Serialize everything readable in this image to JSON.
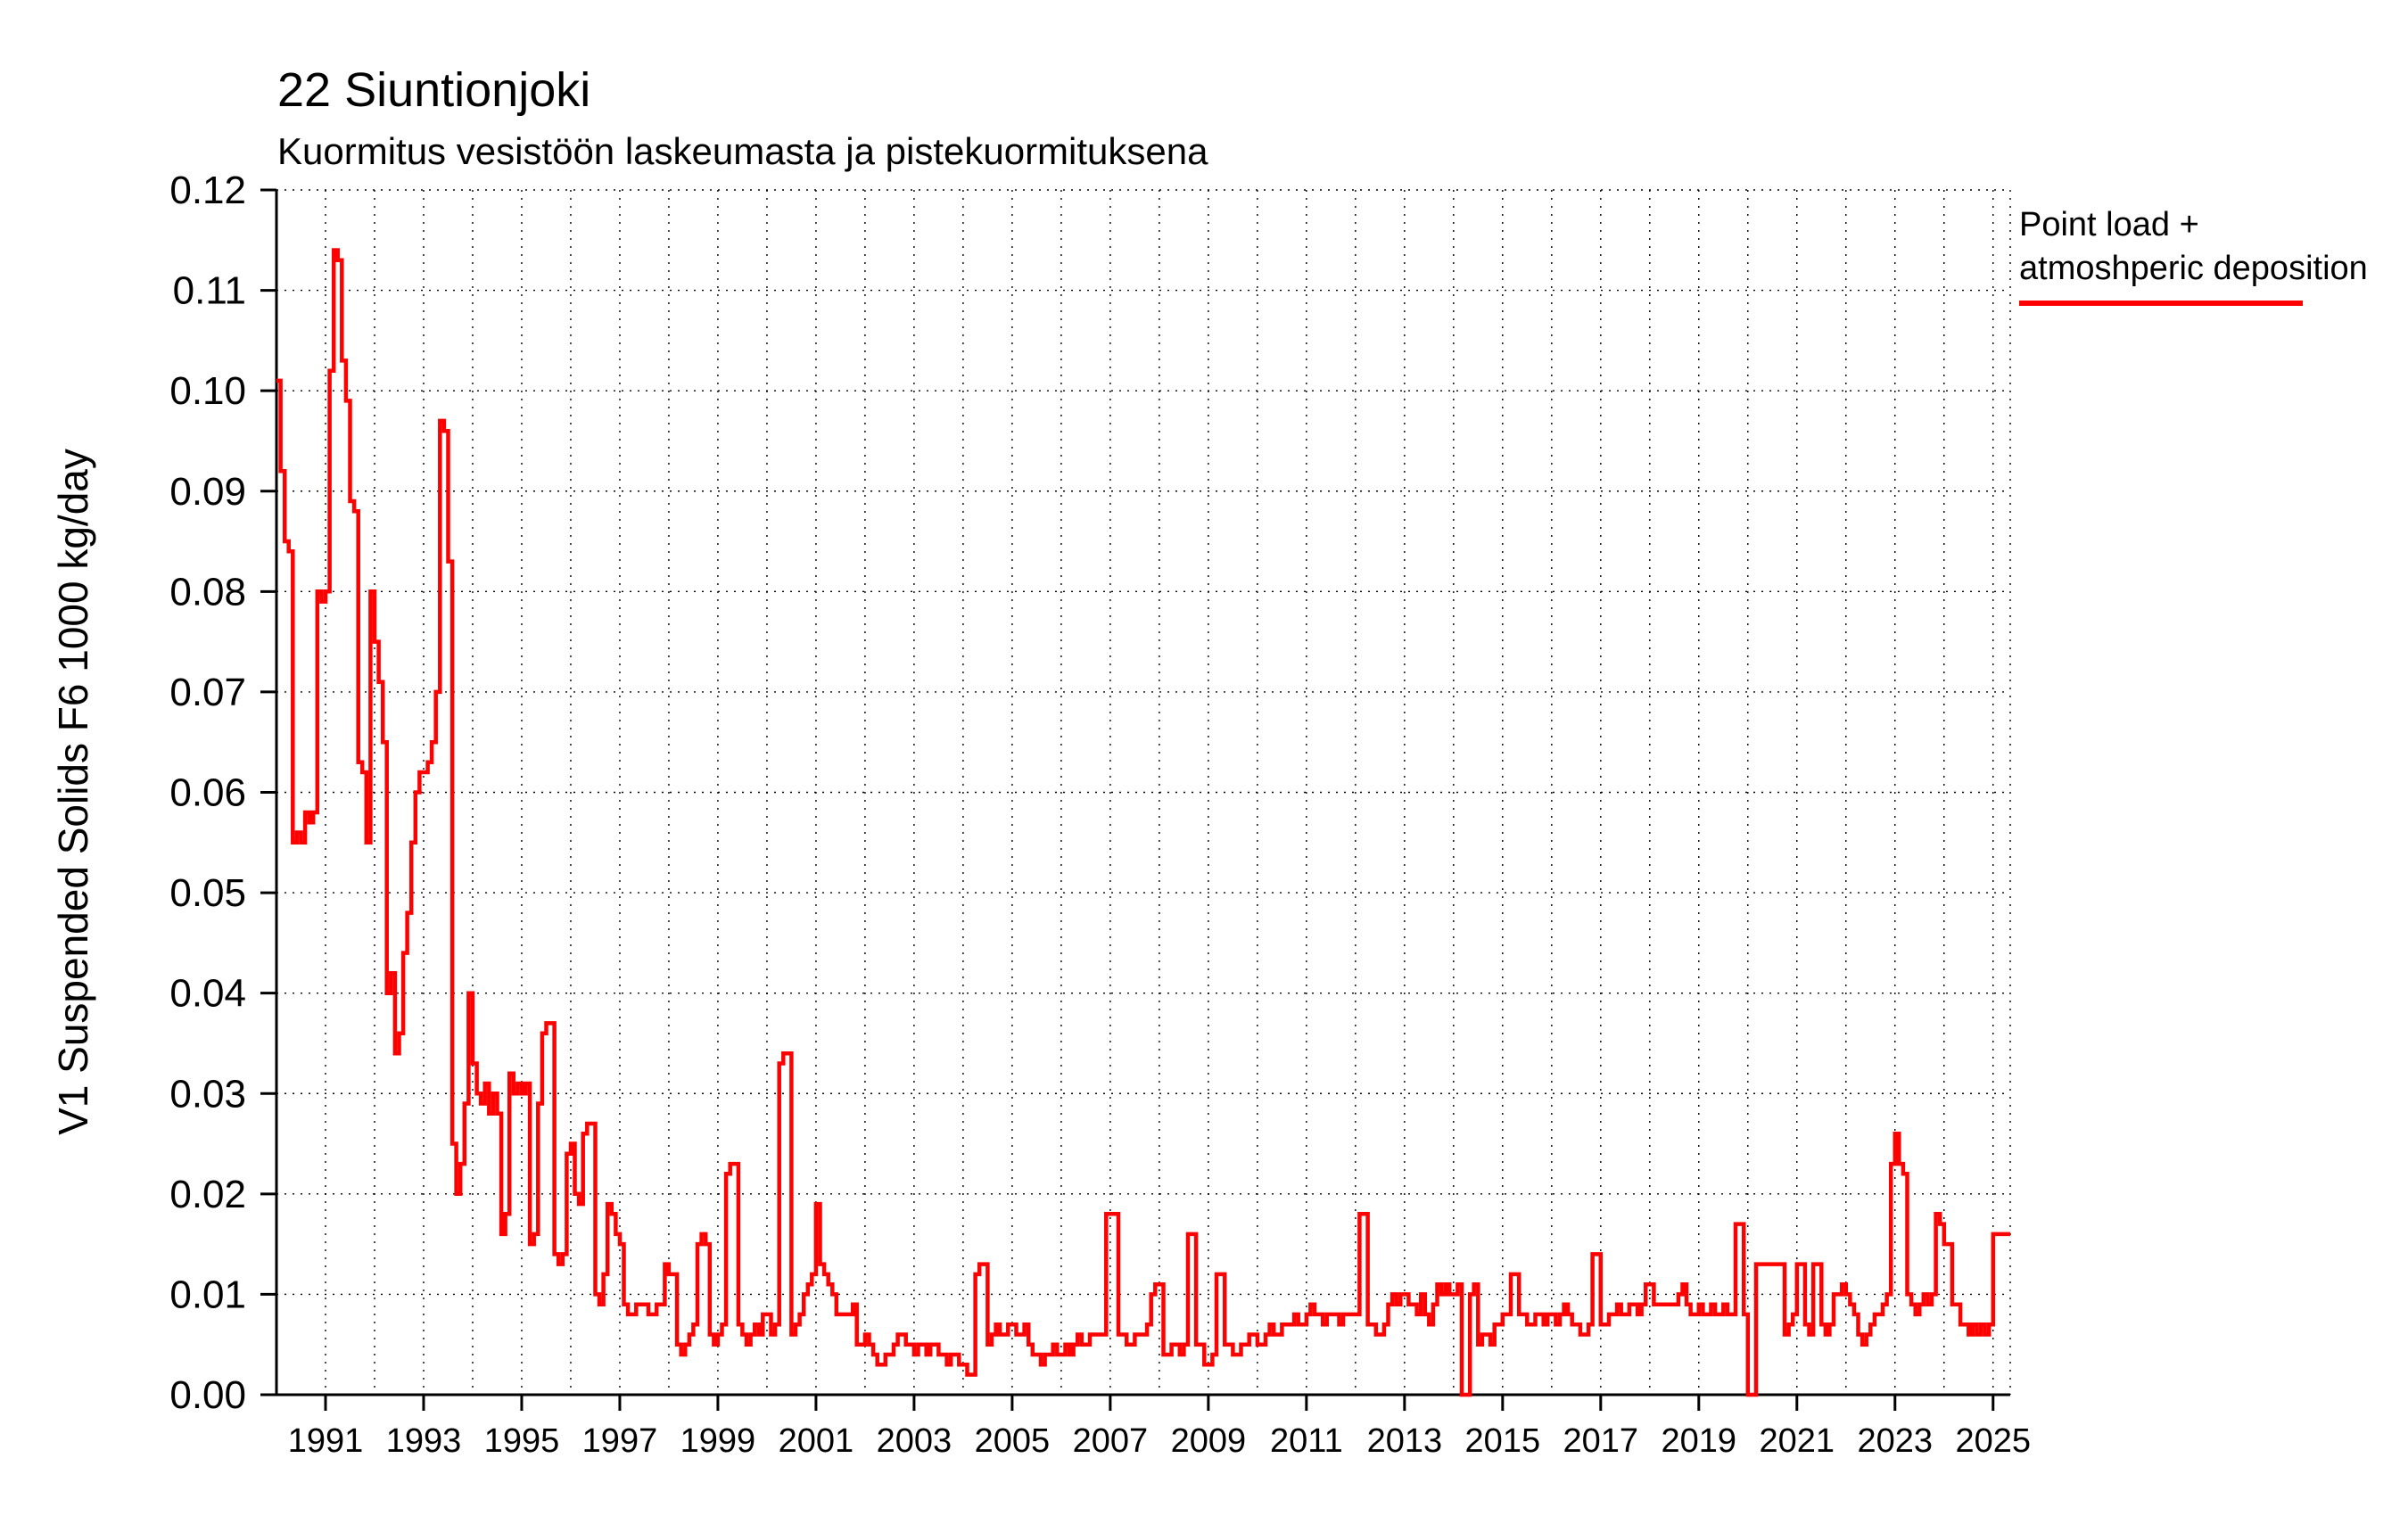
{
  "title": "22 Siuntionjoki",
  "subtitle": "Kuormitus vesistöön laskeumasta ja pistekuormituksena",
  "y_axis_label": "V1 Suspended Solids F6 1000 kg/day",
  "legend": {
    "line1": "Point load +",
    "line2": "atmoshperic deposition",
    "color": "#ff0000"
  },
  "chart_data": {
    "type": "line",
    "style": "step",
    "title": "22 Siuntionjoki",
    "subtitle": "Kuormitus vesistöön laskeumasta ja pistekuormituksena",
    "xlabel": "",
    "ylabel": "V1 Suspended Solids F6 1000 kg/day",
    "ylim": [
      0.0,
      0.12
    ],
    "ytick_step": 0.01,
    "xlim": [
      1990.0,
      2025.35
    ],
    "xticks": [
      1991,
      1993,
      1995,
      1997,
      1999,
      2001,
      2003,
      2005,
      2007,
      2009,
      2011,
      2013,
      2015,
      2017,
      2019,
      2021,
      2023,
      2025
    ],
    "grid": "dotted",
    "legend_position": "top-right-outside",
    "series": [
      {
        "name": "Point load + atmoshperic deposition",
        "color": "#ff0000",
        "start_year": 1990,
        "interval_months": 1,
        "values": [
          0.101,
          0.092,
          0.085,
          0.084,
          0.055,
          0.056,
          0.055,
          0.058,
          0.057,
          0.058,
          0.08,
          0.079,
          0.08,
          0.102,
          0.114,
          0.113,
          0.103,
          0.099,
          0.089,
          0.088,
          0.063,
          0.062,
          0.055,
          0.08,
          0.075,
          0.071,
          0.065,
          0.04,
          0.042,
          0.034,
          0.036,
          0.044,
          0.048,
          0.055,
          0.06,
          0.062,
          0.062,
          0.063,
          0.065,
          0.07,
          0.097,
          0.096,
          0.083,
          0.025,
          0.02,
          0.023,
          0.029,
          0.04,
          0.033,
          0.03,
          0.029,
          0.031,
          0.028,
          0.03,
          0.028,
          0.016,
          0.018,
          0.032,
          0.03,
          0.031,
          0.03,
          0.031,
          0.015,
          0.016,
          0.029,
          0.036,
          0.037,
          0.037,
          0.014,
          0.013,
          0.014,
          0.024,
          0.025,
          0.02,
          0.019,
          0.026,
          0.027,
          0.027,
          0.01,
          0.009,
          0.012,
          0.019,
          0.018,
          0.016,
          0.015,
          0.009,
          0.008,
          0.008,
          0.009,
          0.009,
          0.009,
          0.008,
          0.008,
          0.009,
          0.009,
          0.013,
          0.012,
          0.012,
          0.005,
          0.004,
          0.005,
          0.006,
          0.007,
          0.015,
          0.016,
          0.015,
          0.006,
          0.005,
          0.006,
          0.007,
          0.022,
          0.023,
          0.023,
          0.007,
          0.006,
          0.005,
          0.006,
          0.007,
          0.006,
          0.008,
          0.008,
          0.006,
          0.007,
          0.033,
          0.034,
          0.034,
          0.006,
          0.007,
          0.008,
          0.01,
          0.011,
          0.012,
          0.019,
          0.013,
          0.012,
          0.011,
          0.01,
          0.008,
          0.008,
          0.008,
          0.008,
          0.009,
          0.005,
          0.005,
          0.006,
          0.005,
          0.004,
          0.003,
          0.003,
          0.004,
          0.004,
          0.005,
          0.006,
          0.006,
          0.005,
          0.005,
          0.004,
          0.005,
          0.005,
          0.004,
          0.005,
          0.005,
          0.004,
          0.004,
          0.003,
          0.004,
          0.004,
          0.003,
          0.003,
          0.002,
          0.002,
          0.012,
          0.013,
          0.013,
          0.005,
          0.006,
          0.007,
          0.006,
          0.006,
          0.007,
          0.007,
          0.006,
          0.006,
          0.007,
          0.005,
          0.004,
          0.004,
          0.003,
          0.004,
          0.004,
          0.005,
          0.004,
          0.004,
          0.005,
          0.004,
          0.005,
          0.006,
          0.005,
          0.005,
          0.006,
          0.006,
          0.006,
          0.006,
          0.018,
          0.018,
          0.018,
          0.006,
          0.006,
          0.005,
          0.005,
          0.006,
          0.006,
          0.006,
          0.007,
          0.01,
          0.011,
          0.011,
          0.004,
          0.004,
          0.005,
          0.005,
          0.004,
          0.005,
          0.016,
          0.016,
          0.005,
          0.005,
          0.003,
          0.003,
          0.004,
          0.012,
          0.012,
          0.005,
          0.005,
          0.004,
          0.004,
          0.005,
          0.005,
          0.006,
          0.006,
          0.005,
          0.005,
          0.006,
          0.007,
          0.006,
          0.006,
          0.007,
          0.007,
          0.007,
          0.008,
          0.007,
          0.007,
          0.008,
          0.009,
          0.008,
          0.008,
          0.007,
          0.008,
          0.008,
          0.008,
          0.007,
          0.008,
          0.008,
          0.008,
          0.008,
          0.018,
          0.018,
          0.007,
          0.007,
          0.006,
          0.006,
          0.007,
          0.009,
          0.01,
          0.009,
          0.01,
          0.01,
          0.009,
          0.009,
          0.008,
          0.01,
          0.008,
          0.007,
          0.009,
          0.011,
          0.01,
          0.011,
          0.01,
          0.01,
          0.011,
          0.0,
          0.0,
          0.01,
          0.011,
          0.005,
          0.006,
          0.006,
          0.005,
          0.007,
          0.007,
          0.008,
          0.008,
          0.012,
          0.012,
          0.008,
          0.008,
          0.007,
          0.007,
          0.008,
          0.008,
          0.007,
          0.008,
          0.008,
          0.007,
          0.008,
          0.009,
          0.008,
          0.007,
          0.007,
          0.006,
          0.006,
          0.007,
          0.014,
          0.014,
          0.007,
          0.007,
          0.008,
          0.008,
          0.009,
          0.008,
          0.008,
          0.009,
          0.009,
          0.008,
          0.009,
          0.011,
          0.011,
          0.009,
          0.009,
          0.009,
          0.009,
          0.009,
          0.009,
          0.01,
          0.011,
          0.009,
          0.008,
          0.008,
          0.009,
          0.008,
          0.008,
          0.009,
          0.008,
          0.008,
          0.009,
          0.008,
          0.008,
          0.017,
          0.017,
          0.008,
          0.0,
          0.0,
          0.013,
          0.013,
          0.013,
          0.013,
          0.013,
          0.013,
          0.013,
          0.006,
          0.007,
          0.008,
          0.013,
          0.013,
          0.007,
          0.006,
          0.013,
          0.013,
          0.007,
          0.006,
          0.007,
          0.01,
          0.01,
          0.011,
          0.01,
          0.009,
          0.008,
          0.006,
          0.005,
          0.006,
          0.007,
          0.008,
          0.008,
          0.009,
          0.01,
          0.023,
          0.026,
          0.023,
          0.022,
          0.01,
          0.009,
          0.008,
          0.009,
          0.01,
          0.009,
          0.01,
          0.018,
          0.017,
          0.015,
          0.015,
          0.009,
          0.009,
          0.007,
          0.007,
          0.006,
          0.007,
          0.006,
          0.007,
          0.006,
          0.007,
          0.016
        ]
      }
    ]
  }
}
